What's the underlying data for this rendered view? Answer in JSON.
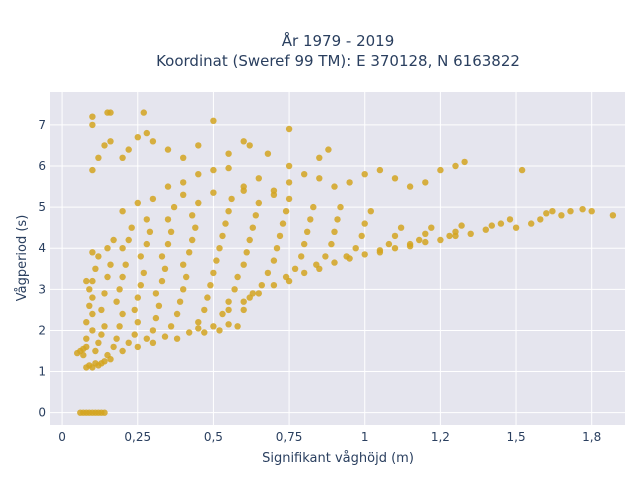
{
  "chart_data": {
    "type": "scatter",
    "title_line1": "År 1979 - 2019",
    "title_line2": "Koordinat (Sweref 99 TM): E 370128, N 6163822",
    "xlabel": "Signifikant våghöjd (m)",
    "ylabel": "Vågperiod (s)",
    "xlim": [
      -0.04,
      1.86
    ],
    "ylim": [
      -0.3,
      7.8
    ],
    "x_ticks": [
      {
        "value": 0,
        "label": "0"
      },
      {
        "value": 0.25,
        "label": "0,25"
      },
      {
        "value": 0.5,
        "label": "0,5"
      },
      {
        "value": 0.75,
        "label": "0,75"
      },
      {
        "value": 1.0,
        "label": "1"
      },
      {
        "value": 1.25,
        "label": "1,2"
      },
      {
        "value": 1.5,
        "label": "1,5"
      },
      {
        "value": 1.75,
        "label": "1,8"
      }
    ],
    "y_ticks": [
      {
        "value": 0,
        "label": "0"
      },
      {
        "value": 1,
        "label": "1"
      },
      {
        "value": 2,
        "label": "2"
      },
      {
        "value": 3,
        "label": "3"
      },
      {
        "value": 4,
        "label": "4"
      },
      {
        "value": 5,
        "label": "5"
      },
      {
        "value": 6,
        "label": "6"
      },
      {
        "value": 7,
        "label": "7"
      }
    ],
    "grid": true,
    "marker_color": "#d4a520",
    "plot_bg": "#e5e5ee",
    "points": [
      [
        0.06,
        0
      ],
      [
        0.07,
        0
      ],
      [
        0.08,
        0
      ],
      [
        0.09,
        0
      ],
      [
        0.1,
        0
      ],
      [
        0.11,
        0
      ],
      [
        0.12,
        0
      ],
      [
        0.13,
        0
      ],
      [
        0.14,
        0
      ],
      [
        0.05,
        1.45
      ],
      [
        0.06,
        1.5
      ],
      [
        0.07,
        1.4
      ],
      [
        0.08,
        1.6
      ],
      [
        0.07,
        1.55
      ],
      [
        0.08,
        1.1
      ],
      [
        0.09,
        1.15
      ],
      [
        0.1,
        1.1
      ],
      [
        0.11,
        1.2
      ],
      [
        0.12,
        1.15
      ],
      [
        0.13,
        1.2
      ],
      [
        0.14,
        1.25
      ],
      [
        0.16,
        1.3
      ],
      [
        0.08,
        1.8
      ],
      [
        0.08,
        2.2
      ],
      [
        0.09,
        2.6
      ],
      [
        0.09,
        3.0
      ],
      [
        0.08,
        3.2
      ],
      [
        0.1,
        2.0
      ],
      [
        0.1,
        2.4
      ],
      [
        0.1,
        2.8
      ],
      [
        0.1,
        3.2
      ],
      [
        0.11,
        3.5
      ],
      [
        0.1,
        3.9
      ],
      [
        0.12,
        3.8
      ],
      [
        0.11,
        1.5
      ],
      [
        0.12,
        1.7
      ],
      [
        0.13,
        1.9
      ],
      [
        0.14,
        2.1
      ],
      [
        0.13,
        2.5
      ],
      [
        0.14,
        2.9
      ],
      [
        0.15,
        3.3
      ],
      [
        0.16,
        3.6
      ],
      [
        0.15,
        4.0
      ],
      [
        0.17,
        4.2
      ],
      [
        0.15,
        1.4
      ],
      [
        0.17,
        1.6
      ],
      [
        0.18,
        1.8
      ],
      [
        0.19,
        2.1
      ],
      [
        0.2,
        2.4
      ],
      [
        0.18,
        2.7
      ],
      [
        0.19,
        3.0
      ],
      [
        0.2,
        3.3
      ],
      [
        0.21,
        3.6
      ],
      [
        0.2,
        4.0
      ],
      [
        0.22,
        4.2
      ],
      [
        0.23,
        4.5
      ],
      [
        0.2,
        1.5
      ],
      [
        0.22,
        1.7
      ],
      [
        0.24,
        1.9
      ],
      [
        0.25,
        2.2
      ],
      [
        0.24,
        2.5
      ],
      [
        0.25,
        2.8
      ],
      [
        0.26,
        3.1
      ],
      [
        0.27,
        3.4
      ],
      [
        0.26,
        3.8
      ],
      [
        0.28,
        4.1
      ],
      [
        0.29,
        4.4
      ],
      [
        0.28,
        4.7
      ],
      [
        0.25,
        1.6
      ],
      [
        0.28,
        1.8
      ],
      [
        0.3,
        2.0
      ],
      [
        0.31,
        2.3
      ],
      [
        0.32,
        2.6
      ],
      [
        0.31,
        2.9
      ],
      [
        0.33,
        3.2
      ],
      [
        0.34,
        3.5
      ],
      [
        0.33,
        3.8
      ],
      [
        0.35,
        4.1
      ],
      [
        0.36,
        4.4
      ],
      [
        0.35,
        4.7
      ],
      [
        0.37,
        5.0
      ],
      [
        0.3,
        1.7
      ],
      [
        0.34,
        1.85
      ],
      [
        0.36,
        2.1
      ],
      [
        0.38,
        2.4
      ],
      [
        0.39,
        2.7
      ],
      [
        0.4,
        3.0
      ],
      [
        0.41,
        3.3
      ],
      [
        0.4,
        3.6
      ],
      [
        0.42,
        3.9
      ],
      [
        0.43,
        4.2
      ],
      [
        0.44,
        4.5
      ],
      [
        0.43,
        4.8
      ],
      [
        0.45,
        5.1
      ],
      [
        0.38,
        1.8
      ],
      [
        0.42,
        1.95
      ],
      [
        0.45,
        2.2
      ],
      [
        0.47,
        2.5
      ],
      [
        0.48,
        2.8
      ],
      [
        0.49,
        3.1
      ],
      [
        0.5,
        3.4
      ],
      [
        0.51,
        3.7
      ],
      [
        0.52,
        4.0
      ],
      [
        0.53,
        4.3
      ],
      [
        0.54,
        4.6
      ],
      [
        0.55,
        4.9
      ],
      [
        0.56,
        5.2
      ],
      [
        0.47,
        1.95
      ],
      [
        0.5,
        2.1
      ],
      [
        0.53,
        2.4
      ],
      [
        0.55,
        2.7
      ],
      [
        0.57,
        3.0
      ],
      [
        0.58,
        3.3
      ],
      [
        0.6,
        3.6
      ],
      [
        0.61,
        3.9
      ],
      [
        0.62,
        4.2
      ],
      [
        0.63,
        4.5
      ],
      [
        0.64,
        4.8
      ],
      [
        0.65,
        5.1
      ],
      [
        0.55,
        2.5
      ],
      [
        0.6,
        2.7
      ],
      [
        0.63,
        2.9
      ],
      [
        0.66,
        3.1
      ],
      [
        0.68,
        3.4
      ],
      [
        0.7,
        3.7
      ],
      [
        0.71,
        4.0
      ],
      [
        0.72,
        4.3
      ],
      [
        0.73,
        4.6
      ],
      [
        0.74,
        4.9
      ],
      [
        0.75,
        5.2
      ],
      [
        0.65,
        2.9
      ],
      [
        0.7,
        3.1
      ],
      [
        0.74,
        3.3
      ],
      [
        0.77,
        3.5
      ],
      [
        0.79,
        3.8
      ],
      [
        0.8,
        4.1
      ],
      [
        0.81,
        4.4
      ],
      [
        0.82,
        4.7
      ],
      [
        0.83,
        5.0
      ],
      [
        0.75,
        3.2
      ],
      [
        0.8,
        3.4
      ],
      [
        0.84,
        3.6
      ],
      [
        0.87,
        3.8
      ],
      [
        0.89,
        4.1
      ],
      [
        0.9,
        4.4
      ],
      [
        0.91,
        4.7
      ],
      [
        0.92,
        5.0
      ],
      [
        0.85,
        3.5
      ],
      [
        0.9,
        3.65
      ],
      [
        0.94,
        3.8
      ],
      [
        0.97,
        4.0
      ],
      [
        0.99,
        4.3
      ],
      [
        1.0,
        4.6
      ],
      [
        1.02,
        4.9
      ],
      [
        0.95,
        3.75
      ],
      [
        1.0,
        3.85
      ],
      [
        1.05,
        3.95
      ],
      [
        1.08,
        4.1
      ],
      [
        1.1,
        4.3
      ],
      [
        1.12,
        4.5
      ],
      [
        1.05,
        3.9
      ],
      [
        1.1,
        4.0
      ],
      [
        1.15,
        4.1
      ],
      [
        1.18,
        4.2
      ],
      [
        1.2,
        4.35
      ],
      [
        1.22,
        4.5
      ],
      [
        1.15,
        4.05
      ],
      [
        1.2,
        4.15
      ],
      [
        1.25,
        4.2
      ],
      [
        1.28,
        4.3
      ],
      [
        1.3,
        4.4
      ],
      [
        1.32,
        4.55
      ],
      [
        1.3,
        4.3
      ],
      [
        1.35,
        4.35
      ],
      [
        1.4,
        4.45
      ],
      [
        1.42,
        4.55
      ],
      [
        1.45,
        4.6
      ],
      [
        1.48,
        4.7
      ],
      [
        1.5,
        4.5
      ],
      [
        1.55,
        4.6
      ],
      [
        1.58,
        4.7
      ],
      [
        1.6,
        4.85
      ],
      [
        1.62,
        4.9
      ],
      [
        1.65,
        4.8
      ],
      [
        1.68,
        4.9
      ],
      [
        1.72,
        4.95
      ],
      [
        1.75,
        4.9
      ],
      [
        1.82,
        4.8
      ],
      [
        0.35,
        5.5
      ],
      [
        0.4,
        5.6
      ],
      [
        0.45,
        5.8
      ],
      [
        0.5,
        5.9
      ],
      [
        0.55,
        5.95
      ],
      [
        0.6,
        5.5
      ],
      [
        0.65,
        5.7
      ],
      [
        0.7,
        5.4
      ],
      [
        0.75,
        5.6
      ],
      [
        0.8,
        5.8
      ],
      [
        0.85,
        5.7
      ],
      [
        0.9,
        5.5
      ],
      [
        0.95,
        5.6
      ],
      [
        1.0,
        5.8
      ],
      [
        1.05,
        5.9
      ],
      [
        1.1,
        5.7
      ],
      [
        1.15,
        5.5
      ],
      [
        1.2,
        5.6
      ],
      [
        1.25,
        5.9
      ],
      [
        1.3,
        6.0
      ],
      [
        1.33,
        6.1
      ],
      [
        1.52,
        5.9
      ],
      [
        0.1,
        5.9
      ],
      [
        0.12,
        6.2
      ],
      [
        0.14,
        6.5
      ],
      [
        0.16,
        6.6
      ],
      [
        0.2,
        6.2
      ],
      [
        0.22,
        6.4
      ],
      [
        0.25,
        6.7
      ],
      [
        0.28,
        6.8
      ],
      [
        0.3,
        6.6
      ],
      [
        0.35,
        6.4
      ],
      [
        0.4,
        6.2
      ],
      [
        0.45,
        6.5
      ],
      [
        0.55,
        6.3
      ],
      [
        0.6,
        6.6
      ],
      [
        0.62,
        6.5
      ],
      [
        0.68,
        6.3
      ],
      [
        0.75,
        6.0
      ],
      [
        0.85,
        6.2
      ],
      [
        0.88,
        6.4
      ],
      [
        0.1,
        7.2
      ],
      [
        0.15,
        7.3
      ],
      [
        0.16,
        7.3
      ],
      [
        0.27,
        7.3
      ],
      [
        0.5,
        7.1
      ],
      [
        0.1,
        7.0
      ],
      [
        0.75,
        6.9
      ],
      [
        0.3,
        5.2
      ],
      [
        0.4,
        5.3
      ],
      [
        0.5,
        5.35
      ],
      [
        0.6,
        5.4
      ],
      [
        0.7,
        5.3
      ],
      [
        0.2,
        4.9
      ],
      [
        0.25,
        5.1
      ],
      [
        0.45,
        2.05
      ],
      [
        0.55,
        2.15
      ],
      [
        0.52,
        2.0
      ],
      [
        0.58,
        2.1
      ],
      [
        0.6,
        2.5
      ],
      [
        0.62,
        2.8
      ]
    ]
  }
}
